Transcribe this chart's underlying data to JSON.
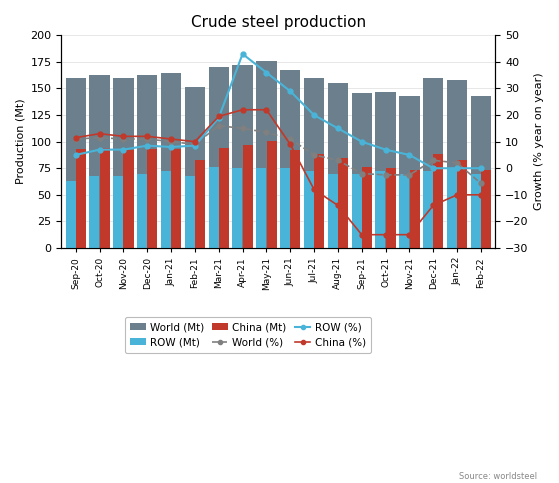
{
  "months": [
    "Sep-20",
    "Oct-20",
    "Nov-20",
    "Dec-20",
    "Jan-21",
    "Feb-21",
    "Mar-21",
    "Apr-21",
    "May-21",
    "Jun-21",
    "Jul-21",
    "Aug-21",
    "Sep-21",
    "Oct-21",
    "Nov-21",
    "Dec-21",
    "Jan-22",
    "Feb-22"
  ],
  "world_mt": [
    160,
    163,
    160,
    163,
    165,
    151,
    170,
    172,
    176,
    167,
    160,
    155,
    146,
    147,
    143,
    160,
    158,
    143
  ],
  "row_mt": [
    63,
    68,
    68,
    70,
    72,
    68,
    76,
    75,
    75,
    75,
    72,
    70,
    70,
    72,
    70,
    72,
    75,
    70
  ],
  "china_mt": [
    93,
    94,
    92,
    93,
    93,
    83,
    94,
    97,
    101,
    92,
    88,
    85,
    76,
    75,
    73,
    88,
    83,
    73
  ],
  "world_pct": [
    11,
    11.5,
    11,
    11,
    10,
    9,
    16,
    15,
    13.5,
    11,
    5,
    3,
    -2,
    -2.5,
    -2.5,
    3,
    2,
    -5.7
  ],
  "row_pct": [
    5,
    7,
    7,
    8.5,
    8,
    8.5,
    19,
    43,
    36,
    29,
    20,
    15,
    10,
    7,
    5,
    0,
    0,
    0
  ],
  "china_pct": [
    11.5,
    13,
    12,
    12,
    11,
    10,
    19.5,
    22,
    22,
    9,
    -8,
    -14,
    -25,
    -25,
    -25,
    -14,
    -10,
    -10
  ],
  "title": "Crude steel production",
  "ylabel_left": "Production (Mt)",
  "ylabel_right": "Growth (% year on year)",
  "source": "Source: worldsteel",
  "bar_world_color": "#6b7f8c",
  "bar_row_color": "#4ab4d8",
  "bar_china_color": "#c0392b",
  "line_world_color": "#808080",
  "line_row_color": "#4ab4d8",
  "line_china_color": "#c0392b",
  "ylim_left": [
    0,
    200
  ],
  "ylim_right": [
    -30,
    50
  ],
  "yticks_left": [
    0,
    25,
    50,
    75,
    100,
    125,
    150,
    175,
    200
  ],
  "yticks_right": [
    -30,
    -20,
    -10,
    0,
    10,
    20,
    30,
    40,
    50
  ]
}
